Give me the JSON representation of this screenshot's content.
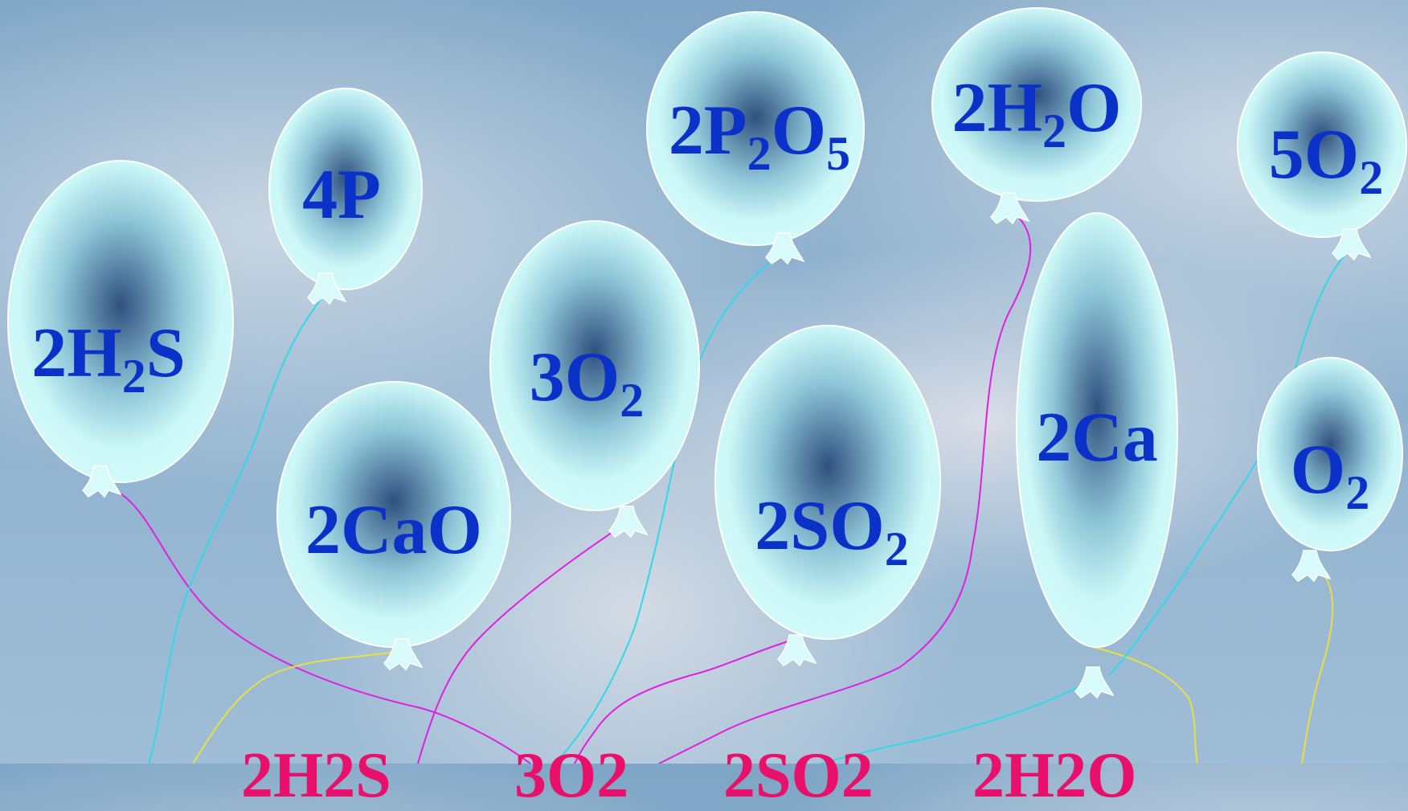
{
  "balloons": [
    {
      "id": "2h2s",
      "parts": [
        {
          "t": "2H"
        },
        {
          "t": "2",
          "sub": true
        },
        {
          "t": "S"
        }
      ]
    },
    {
      "id": "4p",
      "parts": [
        {
          "t": "4P"
        }
      ]
    },
    {
      "id": "2cao",
      "parts": [
        {
          "t": "2CaO"
        }
      ]
    },
    {
      "id": "3o2",
      "parts": [
        {
          "t": "3O"
        },
        {
          "t": "2",
          "sub": true
        }
      ]
    },
    {
      "id": "2p2o5",
      "parts": [
        {
          "t": "2P"
        },
        {
          "t": "2",
          "sub": true
        },
        {
          "t": "O"
        },
        {
          "t": "5",
          "sub": true
        }
      ]
    },
    {
      "id": "2so2",
      "parts": [
        {
          "t": "2SO"
        },
        {
          "t": "2",
          "sub": true
        }
      ]
    },
    {
      "id": "2h2o",
      "parts": [
        {
          "t": "2H"
        },
        {
          "t": "2",
          "sub": true
        },
        {
          "t": "O"
        }
      ]
    },
    {
      "id": "2ca",
      "parts": [
        {
          "t": "2Ca"
        }
      ]
    },
    {
      "id": "5o2",
      "parts": [
        {
          "t": "5O"
        },
        {
          "t": "2",
          "sub": true
        }
      ]
    },
    {
      "id": "o2",
      "parts": [
        {
          "t": "O"
        },
        {
          "t": "2",
          "sub": true
        }
      ]
    }
  ],
  "bottom_text": [
    "2H2S",
    "3O2",
    "2SO2",
    "2H2O"
  ],
  "colors": {
    "balloon_fill": "#cdf8f8",
    "balloon_core": "#30507e",
    "label": "#0a32c8",
    "string_magenta": "#e020e0",
    "string_cyan": "#30d8e8",
    "string_yellow": "#e8e040",
    "bottom_text": "#e8106a"
  }
}
